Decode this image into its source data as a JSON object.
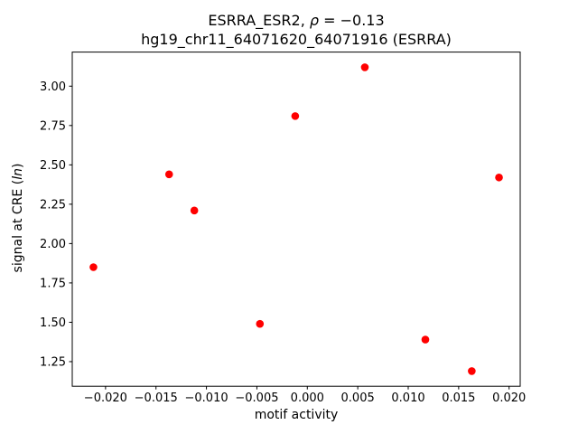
{
  "title": {
    "line1_prefix": "ESRRA_ESR2, ",
    "line1_rho": "ρ",
    "line1_eq": " = −0.13",
    "line2": "hg19_chr11_64071620_64071916 (ESRRA)"
  },
  "axes": {
    "xlabel": "motif activity",
    "ylabel_prefix": "signal at CRE (",
    "ylabel_italic": "ln",
    "ylabel_suffix": ")"
  },
  "chart_data": {
    "type": "scatter",
    "title": "ESRRA_ESR2, ρ = −0.13\nhg19_chr11_64071620_64071916 (ESRRA)",
    "xlabel": "motif activity",
    "ylabel": "signal at CRE (ln)",
    "correlation_rho": -0.13,
    "xlim": [
      -0.0233,
      0.0211
    ],
    "ylim": [
      1.0935,
      3.2165
    ],
    "xticks": [
      -0.02,
      -0.015,
      -0.01,
      -0.005,
      0.0,
      0.005,
      0.01,
      0.015,
      0.02
    ],
    "xtick_labels": [
      "−0.020",
      "−0.015",
      "−0.010",
      "−0.005",
      "0.000",
      "0.005",
      "0.010",
      "0.015",
      "0.020"
    ],
    "yticks": [
      1.25,
      1.5,
      1.75,
      2.0,
      2.25,
      2.5,
      2.75,
      3.0
    ],
    "ytick_labels": [
      "1.25",
      "1.50",
      "1.75",
      "2.00",
      "2.25",
      "2.50",
      "2.75",
      "3.00"
    ],
    "grid": false,
    "legend": "none",
    "series": [
      {
        "name": "ESRRA_ESR2",
        "marker": "circle",
        "color": "#ff0000",
        "points": [
          [
            -0.0212,
            1.85
          ],
          [
            -0.0137,
            2.44
          ],
          [
            -0.0112,
            2.21
          ],
          [
            -0.0047,
            1.49
          ],
          [
            -0.0012,
            2.81
          ],
          [
            0.0057,
            3.12
          ],
          [
            0.0117,
            1.39
          ],
          [
            0.0163,
            1.19
          ],
          [
            0.019,
            2.42
          ]
        ]
      }
    ]
  }
}
